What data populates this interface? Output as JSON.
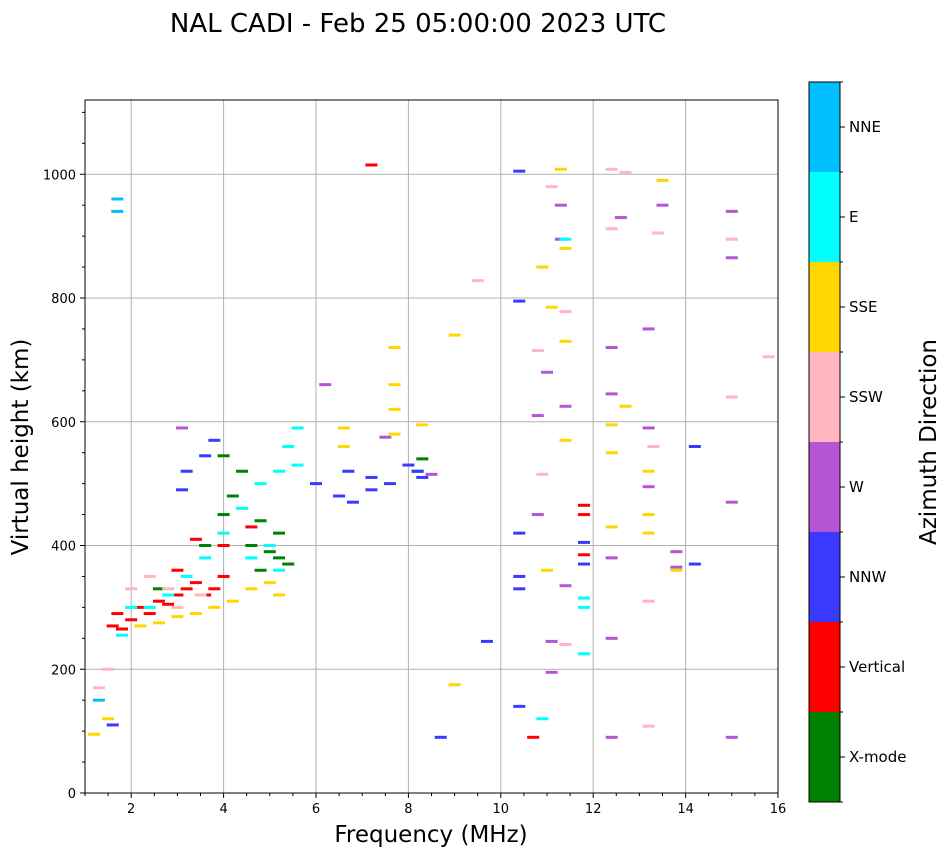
{
  "chart_data": {
    "type": "scatter",
    "title": "NAL CADI - Feb 25 05:00:00 2023 UTC",
    "xlabel": "Frequency (MHz)",
    "ylabel": "Virtual height (km)",
    "xlim": [
      1.0,
      16.0
    ],
    "ylim": [
      0,
      1120
    ],
    "xticks": [
      2,
      4,
      6,
      8,
      10,
      12,
      14,
      16
    ],
    "yticks": [
      0,
      200,
      400,
      600,
      800,
      1000
    ],
    "grid": true,
    "colorbar": {
      "title": "Azimuth Direction",
      "categories": [
        {
          "label": "X-mode",
          "color": "#008000"
        },
        {
          "label": "Vertical",
          "color": "#ff0000"
        },
        {
          "label": "NNW",
          "color": "#3a3aff"
        },
        {
          "label": "W",
          "color": "#b455d6"
        },
        {
          "label": "SSW",
          "color": "#ffb6c1"
        },
        {
          "label": "SSE",
          "color": "#ffd700"
        },
        {
          "label": "E",
          "color": "#00ffff"
        },
        {
          "label": "NNE",
          "color": "#00bfff"
        }
      ]
    },
    "series": [
      {
        "name": "Vertical",
        "points": [
          [
            1.6,
            270
          ],
          [
            1.7,
            290
          ],
          [
            1.8,
            265
          ],
          [
            2.0,
            280
          ],
          [
            2.2,
            300
          ],
          [
            2.4,
            290
          ],
          [
            2.6,
            310
          ],
          [
            2.8,
            305
          ],
          [
            3.0,
            320
          ],
          [
            3.2,
            330
          ],
          [
            3.4,
            340
          ],
          [
            3.6,
            320
          ],
          [
            3.8,
            330
          ],
          [
            4.0,
            350
          ],
          [
            3.4,
            410
          ],
          [
            3.0,
            360
          ],
          [
            4.6,
            430
          ],
          [
            4.0,
            400
          ],
          [
            7.2,
            1015
          ],
          [
            10.7,
            90
          ],
          [
            11.8,
            465
          ],
          [
            11.8,
            450
          ],
          [
            11.8,
            385
          ]
        ]
      },
      {
        "name": "X-mode",
        "points": [
          [
            3.6,
            400
          ],
          [
            4.0,
            450
          ],
          [
            4.2,
            480
          ],
          [
            4.0,
            545
          ],
          [
            4.4,
            520
          ],
          [
            4.6,
            400
          ],
          [
            4.8,
            440
          ],
          [
            5.0,
            390
          ],
          [
            5.2,
            380
          ],
          [
            5.2,
            420
          ],
          [
            5.4,
            370
          ],
          [
            8.2,
            520
          ],
          [
            8.3,
            540
          ],
          [
            4.8,
            360
          ],
          [
            2.6,
            330
          ]
        ]
      },
      {
        "name": "NNW",
        "points": [
          [
            3.2,
            520
          ],
          [
            3.1,
            490
          ],
          [
            3.8,
            570
          ],
          [
            3.6,
            545
          ],
          [
            6.0,
            500
          ],
          [
            6.5,
            480
          ],
          [
            6.7,
            520
          ],
          [
            6.8,
            470
          ],
          [
            7.2,
            490
          ],
          [
            7.2,
            510
          ],
          [
            7.6,
            500
          ],
          [
            8.0,
            530
          ],
          [
            8.2,
            520
          ],
          [
            8.3,
            510
          ],
          [
            10.4,
            1005
          ],
          [
            10.4,
            795
          ],
          [
            10.4,
            420
          ],
          [
            10.4,
            350
          ],
          [
            10.4,
            330
          ],
          [
            10.4,
            140
          ],
          [
            9.7,
            245
          ],
          [
            8.7,
            90
          ],
          [
            11.8,
            405
          ],
          [
            11.8,
            370
          ],
          [
            14.2,
            560
          ],
          [
            14.2,
            370
          ],
          [
            1.6,
            110
          ]
        ]
      },
      {
        "name": "W",
        "points": [
          [
            3.1,
            590
          ],
          [
            6.2,
            660
          ],
          [
            7.5,
            575
          ],
          [
            8.5,
            515
          ],
          [
            10.8,
            610
          ],
          [
            10.8,
            450
          ],
          [
            11.0,
            680
          ],
          [
            11.3,
            950
          ],
          [
            11.3,
            895
          ],
          [
            11.4,
            625
          ],
          [
            11.4,
            335
          ],
          [
            11.1,
            195
          ],
          [
            12.4,
            720
          ],
          [
            12.4,
            645
          ],
          [
            12.4,
            250
          ],
          [
            12.4,
            90
          ],
          [
            12.6,
            930
          ],
          [
            13.2,
            750
          ],
          [
            13.2,
            590
          ],
          [
            13.2,
            495
          ],
          [
            13.5,
            950
          ],
          [
            13.8,
            390
          ],
          [
            13.8,
            365
          ],
          [
            15.0,
            940
          ],
          [
            15.0,
            865
          ],
          [
            15.0,
            470
          ],
          [
            15.0,
            90
          ],
          [
            12.4,
            380
          ],
          [
            11.1,
            245
          ]
        ]
      },
      {
        "name": "SSW",
        "points": [
          [
            1.3,
            170
          ],
          [
            1.5,
            200
          ],
          [
            2.0,
            330
          ],
          [
            2.4,
            350
          ],
          [
            2.8,
            330
          ],
          [
            3.0,
            300
          ],
          [
            3.5,
            320
          ],
          [
            9.5,
            828
          ],
          [
            10.8,
            715
          ],
          [
            10.9,
            515
          ],
          [
            11.1,
            980
          ],
          [
            11.4,
            778
          ],
          [
            12.4,
            1008
          ],
          [
            12.7,
            1003
          ],
          [
            12.4,
            912
          ],
          [
            13.4,
            905
          ],
          [
            13.3,
            560
          ],
          [
            13.2,
            310
          ],
          [
            13.2,
            108
          ],
          [
            15.0,
            895
          ],
          [
            15.0,
            640
          ],
          [
            15.8,
            705
          ],
          [
            11.4,
            240
          ]
        ]
      },
      {
        "name": "SSE",
        "points": [
          [
            1.2,
            95
          ],
          [
            1.5,
            120
          ],
          [
            2.2,
            270
          ],
          [
            2.6,
            275
          ],
          [
            3.0,
            285
          ],
          [
            3.4,
            290
          ],
          [
            3.8,
            300
          ],
          [
            4.2,
            310
          ],
          [
            4.6,
            330
          ],
          [
            5.0,
            340
          ],
          [
            5.2,
            320
          ],
          [
            6.6,
            590
          ],
          [
            6.6,
            560
          ],
          [
            7.7,
            720
          ],
          [
            7.7,
            660
          ],
          [
            7.7,
            620
          ],
          [
            7.7,
            580
          ],
          [
            8.3,
            595
          ],
          [
            9.0,
            740
          ],
          [
            9.0,
            175
          ],
          [
            10.9,
            850
          ],
          [
            11.0,
            360
          ],
          [
            11.1,
            785
          ],
          [
            11.3,
            1008
          ],
          [
            11.4,
            880
          ],
          [
            11.4,
            730
          ],
          [
            11.4,
            570
          ],
          [
            12.4,
            595
          ],
          [
            12.4,
            550
          ],
          [
            12.4,
            430
          ],
          [
            12.7,
            625
          ],
          [
            13.2,
            520
          ],
          [
            13.2,
            450
          ],
          [
            13.2,
            420
          ],
          [
            13.5,
            990
          ],
          [
            13.8,
            360
          ]
        ]
      },
      {
        "name": "E",
        "points": [
          [
            1.8,
            255
          ],
          [
            2.0,
            300
          ],
          [
            2.4,
            300
          ],
          [
            2.8,
            320
          ],
          [
            3.2,
            350
          ],
          [
            3.6,
            380
          ],
          [
            4.0,
            420
          ],
          [
            4.4,
            460
          ],
          [
            4.8,
            500
          ],
          [
            5.2,
            520
          ],
          [
            5.4,
            560
          ],
          [
            5.6,
            590
          ],
          [
            5.6,
            530
          ],
          [
            5.2,
            360
          ],
          [
            5.0,
            400
          ],
          [
            4.6,
            380
          ],
          [
            10.9,
            120
          ],
          [
            11.8,
            315
          ],
          [
            11.8,
            300
          ],
          [
            11.8,
            225
          ],
          [
            11.4,
            895
          ]
        ]
      },
      {
        "name": "NNE",
        "points": [
          [
            1.3,
            150
          ],
          [
            1.7,
            940
          ],
          [
            1.7,
            960
          ]
        ]
      }
    ]
  }
}
